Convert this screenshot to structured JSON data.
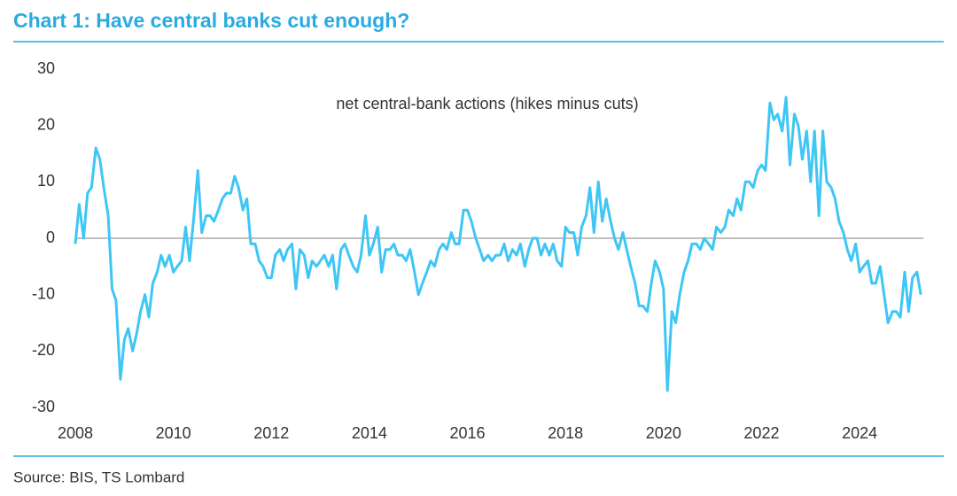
{
  "chart_data": {
    "type": "line",
    "title": "Chart 1: Have central banks cut enough?",
    "annotation": "net central-bank actions (hikes minus cuts)",
    "source": "Source: BIS, TS Lombard",
    "xlim": [
      2008,
      2025.3
    ],
    "ylim": [
      -30,
      30
    ],
    "xticks": [
      2008,
      2010,
      2012,
      2014,
      2016,
      2018,
      2020,
      2022,
      2024
    ],
    "yticks": [
      -30,
      -20,
      -10,
      0,
      10,
      20,
      30
    ],
    "zero_line": true,
    "x": [
      2008.0,
      2008.08,
      2008.17,
      2008.25,
      2008.33,
      2008.42,
      2008.5,
      2008.58,
      2008.67,
      2008.75,
      2008.83,
      2008.92,
      2009.0,
      2009.08,
      2009.17,
      2009.25,
      2009.33,
      2009.42,
      2009.5,
      2009.58,
      2009.67,
      2009.75,
      2009.83,
      2009.92,
      2010.0,
      2010.08,
      2010.17,
      2010.25,
      2010.33,
      2010.42,
      2010.5,
      2010.58,
      2010.67,
      2010.75,
      2010.83,
      2010.92,
      2011.0,
      2011.08,
      2011.17,
      2011.25,
      2011.33,
      2011.42,
      2011.5,
      2011.58,
      2011.67,
      2011.75,
      2011.83,
      2011.92,
      2012.0,
      2012.08,
      2012.17,
      2012.25,
      2012.33,
      2012.42,
      2012.5,
      2012.58,
      2012.67,
      2012.75,
      2012.83,
      2012.92,
      2013.0,
      2013.08,
      2013.17,
      2013.25,
      2013.33,
      2013.42,
      2013.5,
      2013.58,
      2013.67,
      2013.75,
      2013.83,
      2013.92,
      2014.0,
      2014.08,
      2014.17,
      2014.25,
      2014.33,
      2014.42,
      2014.5,
      2014.58,
      2014.67,
      2014.75,
      2014.83,
      2014.92,
      2015.0,
      2015.08,
      2015.17,
      2015.25,
      2015.33,
      2015.42,
      2015.5,
      2015.58,
      2015.67,
      2015.75,
      2015.83,
      2015.92,
      2016.0,
      2016.08,
      2016.17,
      2016.25,
      2016.33,
      2016.42,
      2016.5,
      2016.58,
      2016.67,
      2016.75,
      2016.83,
      2016.92,
      2017.0,
      2017.08,
      2017.17,
      2017.25,
      2017.33,
      2017.42,
      2017.5,
      2017.58,
      2017.67,
      2017.75,
      2017.83,
      2017.92,
      2018.0,
      2018.08,
      2018.17,
      2018.25,
      2018.33,
      2018.42,
      2018.5,
      2018.58,
      2018.67,
      2018.75,
      2018.83,
      2018.92,
      2019.0,
      2019.08,
      2019.17,
      2019.25,
      2019.33,
      2019.42,
      2019.5,
      2019.58,
      2019.67,
      2019.75,
      2019.83,
      2019.92,
      2020.0,
      2020.08,
      2020.17,
      2020.25,
      2020.33,
      2020.42,
      2020.5,
      2020.58,
      2020.67,
      2020.75,
      2020.83,
      2020.92,
      2021.0,
      2021.08,
      2021.17,
      2021.25,
      2021.33,
      2021.42,
      2021.5,
      2021.58,
      2021.67,
      2021.75,
      2021.83,
      2021.92,
      2022.0,
      2022.08,
      2022.17,
      2022.25,
      2022.33,
      2022.42,
      2022.5,
      2022.58,
      2022.67,
      2022.75,
      2022.83,
      2022.92,
      2023.0,
      2023.08,
      2023.17,
      2023.25,
      2023.33,
      2023.42,
      2023.5,
      2023.58,
      2023.67,
      2023.75,
      2023.83,
      2023.92,
      2024.0,
      2024.08,
      2024.17,
      2024.25,
      2024.33,
      2024.42,
      2024.5,
      2024.58,
      2024.67,
      2024.75,
      2024.83,
      2024.92,
      2025.0,
      2025.08,
      2025.17,
      2025.25
    ],
    "series": [
      {
        "color": "#3ec6f5",
        "values": [
          -1,
          6,
          0,
          8,
          9,
          16,
          14,
          9,
          4,
          -9,
          -11,
          -25,
          -18,
          -16,
          -20,
          -17,
          -13,
          -10,
          -14,
          -8,
          -6,
          -3,
          -5,
          -3,
          -6,
          -5,
          -4,
          2,
          -4,
          4,
          12,
          1,
          4,
          4,
          3,
          5,
          7,
          8,
          8,
          11,
          9,
          5,
          7,
          -1,
          -1,
          -4,
          -5,
          -7,
          -7,
          -3,
          -2,
          -4,
          -2,
          -1,
          -9,
          -2,
          -3,
          -7,
          -4,
          -5,
          -4,
          -3,
          -5,
          -3,
          -9,
          -2,
          -1,
          -3,
          -5,
          -6,
          -3,
          4,
          -3,
          -1,
          2,
          -6,
          -2,
          -2,
          -1,
          -3,
          -3,
          -4,
          -2,
          -6,
          -10,
          -8,
          -6,
          -4,
          -5,
          -2,
          -1,
          -2,
          1,
          -1,
          -1,
          5,
          5,
          3,
          0,
          -2,
          -4,
          -3,
          -4,
          -3,
          -3,
          -1,
          -4,
          -2,
          -3,
          -1,
          -5,
          -2,
          0,
          0,
          -3,
          -1,
          -3,
          -1,
          -4,
          -5,
          2,
          1,
          1,
          -3,
          2,
          4,
          9,
          1,
          10,
          3,
          7,
          3,
          0,
          -2,
          1,
          -2,
          -5,
          -8,
          -12,
          -12,
          -13,
          -8,
          -4,
          -6,
          -9,
          -27,
          -13,
          -15,
          -10,
          -6,
          -4,
          -1,
          -1,
          -2,
          0,
          -1,
          -2,
          2,
          1,
          2,
          5,
          4,
          7,
          5,
          10,
          10,
          9,
          12,
          13,
          12,
          24,
          21,
          22,
          19,
          25,
          13,
          22,
          20,
          14,
          19,
          10,
          19,
          4,
          19,
          10,
          9,
          7,
          3,
          1,
          -2,
          -4,
          -1,
          -6,
          -5,
          -4,
          -8,
          -8,
          -5,
          -10,
          -15,
          -13,
          -13,
          -14,
          -6,
          -13,
          -7,
          -6,
          -10
        ]
      }
    ]
  }
}
